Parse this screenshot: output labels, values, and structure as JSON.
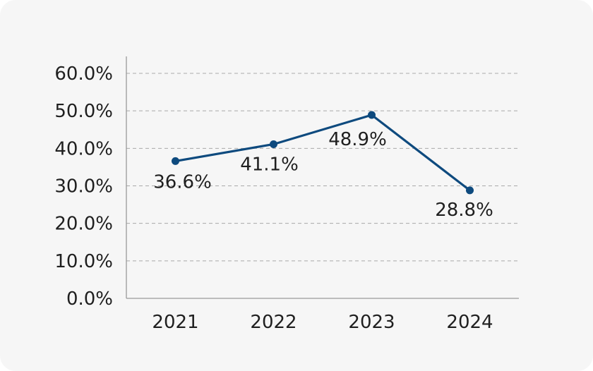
{
  "chart_data": {
    "type": "line",
    "title": "",
    "xlabel": "",
    "ylabel": "",
    "categories": [
      "2021",
      "2022",
      "2023",
      "2024"
    ],
    "series": [
      {
        "values": [
          36.6,
          41.1,
          48.9,
          28.8
        ],
        "labels": [
          "36.6%",
          "41.1%",
          "48.9%",
          "28.8%"
        ],
        "color": "#0e4a7e"
      }
    ],
    "ylim": [
      0,
      60
    ],
    "yticks": [
      0,
      10,
      20,
      30,
      40,
      50,
      60
    ],
    "ytick_labels": [
      "0.0%",
      "10.0%",
      "20.0%",
      "30.0%",
      "40.0%",
      "50.0%",
      "60.0%"
    ],
    "grid": true,
    "legend": "none"
  }
}
